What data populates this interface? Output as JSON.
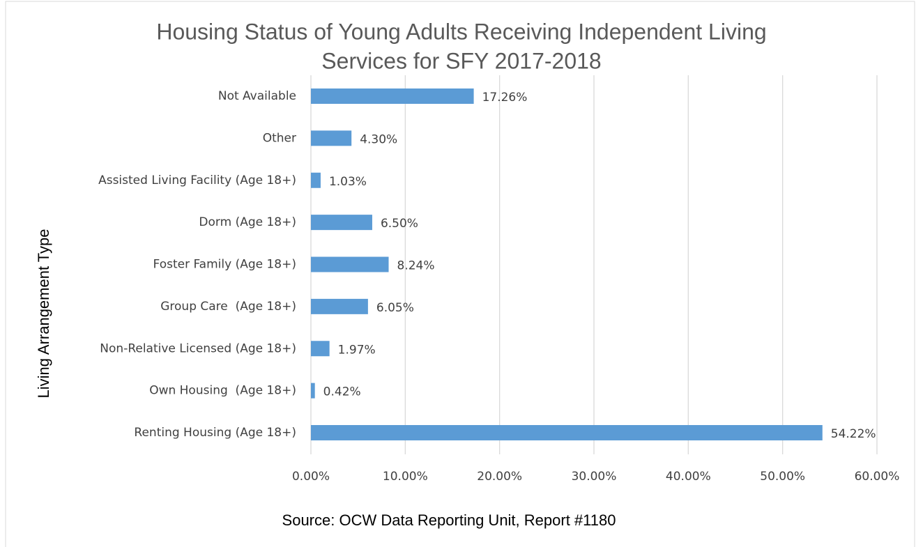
{
  "chart_data": {
    "type": "bar",
    "orientation": "horizontal",
    "title": [
      "Housing Status of Young Adults Receiving Independent Living",
      "Services for SFY 2017-2018"
    ],
    "y_label": "Living Arrangement Type",
    "source": "Source: OCW Data Reporting Unit, Report #1180",
    "categories": [
      "Not Available",
      "Other",
      "Assisted Living Facility (Age 18+)",
      "Dorm (Age 18+)",
      "Foster Family (Age 18+)",
      "Group Care  (Age 18+)",
      "Non-Relative Licensed (Age 18+)",
      "Own Housing  (Age 18+)",
      "Renting Housing (Age 18+)"
    ],
    "values": [
      17.26,
      4.3,
      1.03,
      6.5,
      8.24,
      6.05,
      1.97,
      0.42,
      54.22
    ],
    "value_labels": [
      "17.26%",
      "4.30%",
      "1.03%",
      "6.50%",
      "8.24%",
      "6.05%",
      "1.97%",
      "0.42%",
      "54.22%"
    ],
    "color": "#5b9bd5",
    "xlim": [
      0,
      60
    ],
    "xticks": [
      {
        "value": 0,
        "label": "0.00%"
      },
      {
        "value": 10,
        "label": "10.00%"
      },
      {
        "value": 20,
        "label": "20.00%"
      },
      {
        "value": 30,
        "label": "30.00%"
      },
      {
        "value": 40,
        "label": "40.00%"
      },
      {
        "value": 50,
        "label": "50.00%"
      },
      {
        "value": 60,
        "label": "60.00%"
      }
    ],
    "grid": true
  }
}
